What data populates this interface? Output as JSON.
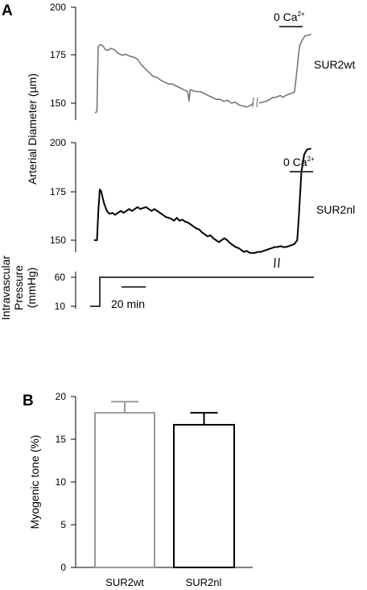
{
  "panel_a": {
    "letter": "A",
    "ylabel": "Arterial Diameter (µm)",
    "pressure_label": [
      "Intravascular",
      "Pressure",
      "(mmHg)"
    ],
    "scale_bar_label": "20 min",
    "calcium_label": "0 Ca",
    "calcium_superscript": "2+",
    "pressure_ticks": [
      "60",
      "10"
    ]
  },
  "panel_b": {
    "letter": "B",
    "ylabel": "Myogenic tone (%)"
  },
  "chart_data": [
    {
      "type": "line",
      "series_label": "SUR2wt",
      "y_ticks": [
        "200",
        "175",
        "150"
      ],
      "ylim": [
        140,
        200
      ],
      "x_unit": "min",
      "axis_break": true,
      "trace_color": "#777777",
      "points": [
        [
          0,
          145
        ],
        [
          1.5,
          145.5
        ],
        [
          2.5,
          179.5
        ],
        [
          4,
          180.5
        ],
        [
          6,
          180
        ],
        [
          8,
          178
        ],
        [
          10,
          177.5
        ],
        [
          12,
          178.5
        ],
        [
          15,
          178
        ],
        [
          18,
          176
        ],
        [
          21,
          175
        ],
        [
          24,
          175.5
        ],
        [
          27,
          174.5
        ],
        [
          30,
          174
        ],
        [
          33,
          173
        ],
        [
          36,
          170
        ],
        [
          39,
          168
        ],
        [
          42,
          166
        ],
        [
          45,
          164
        ],
        [
          48,
          163.5
        ],
        [
          51,
          162
        ],
        [
          54,
          161
        ],
        [
          57,
          160
        ],
        [
          60,
          160
        ],
        [
          63,
          159
        ],
        [
          66,
          158
        ],
        [
          69,
          157
        ],
        [
          72,
          156
        ],
        [
          73,
          151
        ],
        [
          74,
          157
        ],
        [
          76,
          156.5
        ],
        [
          79,
          156
        ],
        [
          82,
          156
        ],
        [
          85,
          155
        ],
        [
          88,
          154
        ],
        [
          91,
          153
        ],
        [
          94,
          152
        ],
        [
          97,
          152
        ],
        [
          100,
          151
        ],
        [
          103,
          151.5
        ],
        [
          106,
          150
        ],
        [
          109,
          150.5
        ],
        [
          112,
          149
        ],
        [
          115,
          148.5
        ],
        [
          118,
          148
        ],
        [
          121,
          149
        ],
        [
          124,
          150.5
        ],
        [
          127,
          150
        ],
        [
          130,
          150.5
        ],
        [
          133,
          151
        ],
        [
          136,
          152
        ],
        [
          138,
          153
        ],
        [
          140,
          153
        ],
        [
          142,
          153.5
        ],
        [
          144,
          154
        ],
        [
          146,
          153
        ],
        [
          148,
          154
        ],
        [
          150,
          154.5
        ],
        [
          152,
          155
        ],
        [
          154,
          155.5
        ],
        [
          155,
          156
        ],
        [
          156,
          162
        ],
        [
          157,
          168
        ],
        [
          158,
          175
        ],
        [
          159,
          180
        ],
        [
          161,
          183
        ],
        [
          163,
          185
        ],
        [
          166,
          185.5
        ],
        [
          168,
          186
        ]
      ]
    },
    {
      "type": "line",
      "series_label": "SUR2nl",
      "y_ticks": [
        "200",
        "175",
        "150"
      ],
      "ylim": [
        140,
        200
      ],
      "x_unit": "min",
      "axis_break": true,
      "trace_color": "#000000",
      "points": [
        [
          0,
          150
        ],
        [
          2,
          150
        ],
        [
          3,
          165
        ],
        [
          4,
          176
        ],
        [
          5,
          175
        ],
        [
          7,
          169
        ],
        [
          9,
          165
        ],
        [
          11,
          163.5
        ],
        [
          13,
          164
        ],
        [
          15,
          163
        ],
        [
          17,
          164
        ],
        [
          19,
          165
        ],
        [
          21,
          164
        ],
        [
          23,
          165
        ],
        [
          25,
          166
        ],
        [
          27,
          165
        ],
        [
          29,
          166
        ],
        [
          31,
          167
        ],
        [
          33,
          166
        ],
        [
          35,
          166.5
        ],
        [
          37,
          167
        ],
        [
          39,
          166
        ],
        [
          41,
          165
        ],
        [
          43,
          166
        ],
        [
          45,
          165
        ],
        [
          47,
          164
        ],
        [
          49,
          163
        ],
        [
          51,
          162
        ],
        [
          53,
          161.5
        ],
        [
          55,
          161
        ],
        [
          57,
          160
        ],
        [
          59,
          161.5
        ],
        [
          61,
          160
        ],
        [
          63,
          160.5
        ],
        [
          65,
          159.5
        ],
        [
          67,
          159
        ],
        [
          69,
          158
        ],
        [
          71,
          157
        ],
        [
          73,
          156
        ],
        [
          75,
          155.5
        ],
        [
          77,
          154
        ],
        [
          79,
          153
        ],
        [
          81,
          152
        ],
        [
          83,
          152.5
        ],
        [
          85,
          151
        ],
        [
          87,
          150
        ],
        [
          89,
          149
        ],
        [
          91,
          150
        ],
        [
          93,
          151
        ],
        [
          95,
          150
        ],
        [
          97,
          148.5
        ],
        [
          99,
          147.5
        ],
        [
          101,
          146.5
        ],
        [
          103,
          146
        ],
        [
          105,
          145
        ],
        [
          107,
          144
        ],
        [
          109,
          144.5
        ],
        [
          111,
          143.5
        ],
        [
          113,
          143.5
        ],
        [
          115,
          143.5
        ],
        [
          117,
          144
        ],
        [
          119,
          144
        ],
        [
          121,
          144.5
        ],
        [
          123,
          145
        ],
        [
          125,
          145.5
        ],
        [
          127,
          146
        ],
        [
          129,
          146.5
        ],
        [
          131,
          146.5
        ],
        [
          133,
          147
        ],
        [
          135,
          146.5
        ],
        [
          137,
          146.5
        ],
        [
          139,
          147
        ],
        [
          141,
          147.5
        ],
        [
          143,
          148
        ],
        [
          145,
          150
        ],
        [
          146,
          160
        ],
        [
          147,
          173
        ],
        [
          148,
          185
        ],
        [
          150,
          194
        ],
        [
          152,
          196.5
        ],
        [
          155,
          197
        ]
      ]
    },
    {
      "type": "bar",
      "categories": [
        "SUR2wt",
        "SUR2nl"
      ],
      "values": [
        18.1,
        16.7
      ],
      "errors": [
        1.3,
        1.4
      ],
      "y_ticks": [
        "20",
        "15",
        "10",
        "5",
        "0"
      ],
      "ylim": [
        0,
        20
      ],
      "bar_colors": [
        "#999999",
        "#000000"
      ]
    }
  ]
}
